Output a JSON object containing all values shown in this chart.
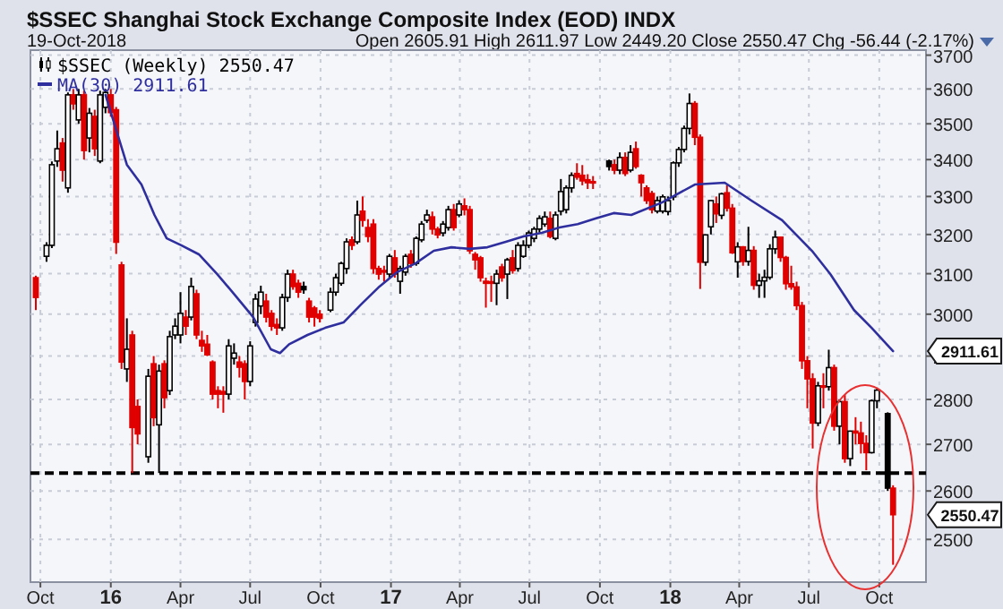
{
  "chart_data": {
    "type": "candlestick",
    "title": "$SSEC Shanghai Stock Exchange Composite Index (EOD) INDX",
    "subtitle": "19-Oct-2018",
    "annotations": [
      "Open 2605.91  High 2611.97  Low 2449.20  Close 2550.47  Chg -56.44 (-2.17%)",
      "2911.61",
      "2550.47"
    ],
    "xlim": [
      "2015-09-18",
      "2018-12-01"
    ],
    "xticks": [
      {
        "value": "2015-10-01",
        "label": "Oct"
      },
      {
        "value": "2016-01-01",
        "label": "16"
      },
      {
        "value": "2016-04-01",
        "label": "Apr"
      },
      {
        "value": "2016-07-01",
        "label": "Jul"
      },
      {
        "value": "2016-10-01",
        "label": "Oct"
      },
      {
        "value": "2017-01-01",
        "label": "17"
      },
      {
        "value": "2017-04-01",
        "label": "Apr"
      },
      {
        "value": "2017-07-01",
        "label": "Jul"
      },
      {
        "value": "2017-10-01",
        "label": "Oct"
      },
      {
        "value": "2018-01-01",
        "label": "18"
      },
      {
        "value": "2018-04-01",
        "label": "Apr"
      },
      {
        "value": "2018-07-01",
        "label": "Jul"
      },
      {
        "value": "2018-10-01",
        "label": "Oct"
      }
    ],
    "ylim": [
      2415,
      3715
    ],
    "yticks": [
      2500,
      2600,
      2700,
      2800,
      2900,
      3000,
      3100,
      3200,
      3300,
      3400,
      3500,
      3600,
      3700
    ],
    "log": "y",
    "grid": true,
    "legend": "top left",
    "ref_lines": [
      {
        "axis": "y",
        "value": 2638,
        "color": "#000000",
        "line_style": "dashed"
      }
    ],
    "series": [
      {
        "type": "candlestick",
        "name": "$SSEC (Weekly) 2550.47",
        "x": [
          "2015-09-25",
          "2015-10-09",
          "2015-10-16",
          "2015-10-23",
          "2015-10-30",
          "2015-11-06",
          "2015-11-13",
          "2015-11-20",
          "2015-11-27",
          "2015-12-04",
          "2015-12-11",
          "2015-12-18",
          "2015-12-25",
          "2016-01-01",
          "2016-01-08",
          "2016-01-15",
          "2016-01-22",
          "2016-01-29",
          "2016-02-05",
          "2016-02-19",
          "2016-02-26",
          "2016-03-04",
          "2016-03-11",
          "2016-03-18",
          "2016-03-25",
          "2016-04-01",
          "2016-04-08",
          "2016-04-15",
          "2016-04-22",
          "2016-04-29",
          "2016-05-06",
          "2016-05-13",
          "2016-05-20",
          "2016-05-27",
          "2016-06-03",
          "2016-06-10",
          "2016-06-17",
          "2016-06-24",
          "2016-07-01",
          "2016-07-08",
          "2016-07-15",
          "2016-07-22",
          "2016-07-29",
          "2016-08-05",
          "2016-08-12",
          "2016-08-19",
          "2016-08-26",
          "2016-09-02",
          "2016-09-09",
          "2016-09-16",
          "2016-09-23",
          "2016-09-30",
          "2016-10-14",
          "2016-10-21",
          "2016-10-28",
          "2016-11-04",
          "2016-11-11",
          "2016-11-18",
          "2016-11-25",
          "2016-12-02",
          "2016-12-09",
          "2016-12-16",
          "2016-12-23",
          "2016-12-30",
          "2017-01-06",
          "2017-01-13",
          "2017-01-20",
          "2017-01-27",
          "2017-02-03",
          "2017-02-10",
          "2017-02-17",
          "2017-02-24",
          "2017-03-03",
          "2017-03-10",
          "2017-03-17",
          "2017-03-24",
          "2017-03-31",
          "2017-04-07",
          "2017-04-14",
          "2017-04-21",
          "2017-04-28",
          "2017-05-05",
          "2017-05-12",
          "2017-05-19",
          "2017-05-26",
          "2017-06-02",
          "2017-06-09",
          "2017-06-16",
          "2017-06-23",
          "2017-06-30",
          "2017-07-07",
          "2017-07-14",
          "2017-07-21",
          "2017-07-28",
          "2017-08-04",
          "2017-08-11",
          "2017-08-18",
          "2017-08-25",
          "2017-09-01",
          "2017-09-08",
          "2017-09-15",
          "2017-09-22",
          "2017-10-13",
          "2017-10-20",
          "2017-10-27",
          "2017-11-03",
          "2017-11-10",
          "2017-11-17",
          "2017-11-24",
          "2017-12-01",
          "2017-12-08",
          "2017-12-15",
          "2017-12-22",
          "2017-12-29",
          "2018-01-05",
          "2018-01-12",
          "2018-01-19",
          "2018-01-26",
          "2018-02-02",
          "2018-02-09",
          "2018-02-16",
          "2018-02-23",
          "2018-03-02",
          "2018-03-09",
          "2018-03-16",
          "2018-03-23",
          "2018-03-30",
          "2018-04-06",
          "2018-04-13",
          "2018-04-20",
          "2018-04-27",
          "2018-05-04",
          "2018-05-11",
          "2018-05-18",
          "2018-05-25",
          "2018-06-01",
          "2018-06-08",
          "2018-06-15",
          "2018-06-22",
          "2018-06-29",
          "2018-07-06",
          "2018-07-13",
          "2018-07-20",
          "2018-07-27",
          "2018-08-03",
          "2018-08-10",
          "2018-08-17",
          "2018-08-24",
          "2018-08-31",
          "2018-09-07",
          "2018-09-14",
          "2018-09-21",
          "2018-09-28",
          "2018-10-12",
          "2018-10-19"
        ],
        "ohlc": [
          [
            3090,
            3095,
            3010,
            3041
          ],
          [
            3144,
            3180,
            3130,
            3172
          ],
          [
            3172,
            3395,
            3165,
            3386
          ],
          [
            3396,
            3481,
            3380,
            3430
          ],
          [
            3446,
            3460,
            3340,
            3371
          ],
          [
            3323,
            3590,
            3310,
            3583
          ],
          [
            3583,
            3600,
            3540,
            3557
          ],
          [
            3511,
            3600,
            3500,
            3583
          ],
          [
            3583,
            3595,
            3400,
            3425
          ],
          [
            3460,
            3545,
            3420,
            3530
          ],
          [
            3521,
            3540,
            3410,
            3430
          ],
          [
            3396,
            3595,
            3390,
            3583
          ],
          [
            3547,
            3600,
            3530,
            3590
          ],
          [
            3583,
            3600,
            3520,
            3532
          ],
          [
            3540,
            3548,
            3150,
            3180
          ],
          [
            3122,
            3130,
            2870,
            2886
          ],
          [
            2870,
            2990,
            2840,
            2916
          ],
          [
            2950,
            2960,
            2638,
            2737
          ],
          [
            2784,
            2800,
            2700,
            2723
          ],
          [
            2673,
            2870,
            2660,
            2853
          ],
          [
            2882,
            2900,
            2740,
            2759
          ],
          [
            2743,
            2880,
            2638,
            2865
          ],
          [
            2882,
            2890,
            2780,
            2804
          ],
          [
            2820,
            2960,
            2810,
            2946
          ],
          [
            2950,
            2990,
            2940,
            2971
          ],
          [
            2950,
            3054,
            2930,
            3002
          ],
          [
            2993,
            3010,
            2950,
            2971
          ],
          [
            2993,
            3090,
            2985,
            3068
          ],
          [
            3050,
            3060,
            2940,
            2950
          ],
          [
            2937,
            2960,
            2910,
            2924
          ],
          [
            2928,
            2950,
            2900,
            2903
          ],
          [
            2886,
            2890,
            2800,
            2812
          ],
          [
            2820,
            2830,
            2780,
            2812
          ],
          [
            2818,
            2830,
            2770,
            2812
          ],
          [
            2812,
            2940,
            2800,
            2924
          ],
          [
            2895,
            2930,
            2880,
            2907
          ],
          [
            2886,
            2900,
            2850,
            2874
          ],
          [
            2882,
            2890,
            2800,
            2841
          ],
          [
            2841,
            2935,
            2830,
            2924
          ],
          [
            2980,
            3050,
            2970,
            3037
          ],
          [
            3020,
            3070,
            3000,
            3054
          ],
          [
            3032,
            3050,
            2980,
            2993
          ],
          [
            3002,
            3010,
            2960,
            2971
          ],
          [
            2975,
            2990,
            2950,
            2967
          ],
          [
            2967,
            3050,
            2960,
            3041
          ],
          [
            3041,
            3110,
            3030,
            3099
          ],
          [
            3099,
            3110,
            3060,
            3068
          ],
          [
            3076,
            3085,
            3040,
            3054
          ],
          [
            3068,
            3080,
            3050,
            3060
          ],
          [
            3032,
            3040,
            2980,
            2993
          ],
          [
            3015,
            3020,
            2970,
            2993
          ],
          [
            3000,
            3010,
            2980,
            2990
          ],
          [
            3010,
            3065,
            3005,
            3054
          ],
          [
            3054,
            3100,
            3045,
            3090
          ],
          [
            3076,
            3130,
            3070,
            3126
          ],
          [
            3113,
            3190,
            3100,
            3181
          ],
          [
            3186,
            3195,
            3160,
            3172
          ],
          [
            3181,
            3289,
            3175,
            3251
          ],
          [
            3261,
            3300,
            3220,
            3237
          ],
          [
            3218,
            3240,
            3180,
            3195
          ],
          [
            3227,
            3240,
            3100,
            3113
          ],
          [
            3113,
            3120,
            3085,
            3099
          ],
          [
            3108,
            3120,
            3080,
            3104
          ],
          [
            3099,
            3150,
            3090,
            3144
          ],
          [
            3140,
            3160,
            3090,
            3099
          ],
          [
            3081,
            3120,
            3050,
            3113
          ],
          [
            3104,
            3150,
            3095,
            3144
          ],
          [
            3149,
            3160,
            3115,
            3126
          ],
          [
            3126,
            3195,
            3120,
            3190
          ],
          [
            3186,
            3235,
            3180,
            3227
          ],
          [
            3237,
            3265,
            3230,
            3251
          ],
          [
            3246,
            3260,
            3200,
            3214
          ],
          [
            3214,
            3220,
            3190,
            3199
          ],
          [
            3204,
            3235,
            3195,
            3227
          ],
          [
            3218,
            3275,
            3210,
            3265
          ],
          [
            3265,
            3280,
            3210,
            3218
          ],
          [
            3251,
            3290,
            3245,
            3280
          ],
          [
            3275,
            3295,
            3250,
            3265
          ],
          [
            3265,
            3275,
            3150,
            3158
          ],
          [
            3149,
            3155,
            3110,
            3135
          ],
          [
            3140,
            3145,
            3080,
            3090
          ],
          [
            3081,
            3090,
            3016,
            3076
          ],
          [
            3080,
            3095,
            3030,
            3076
          ],
          [
            3076,
            3110,
            3022,
            3099
          ],
          [
            3117,
            3125,
            3080,
            3090
          ],
          [
            3099,
            3140,
            3037,
            3135
          ],
          [
            3140,
            3160,
            3100,
            3108
          ],
          [
            3113,
            3180,
            3105,
            3172
          ],
          [
            3144,
            3185,
            3140,
            3172
          ],
          [
            3172,
            3210,
            3165,
            3204
          ],
          [
            3190,
            3220,
            3180,
            3214
          ],
          [
            3214,
            3250,
            3205,
            3242
          ],
          [
            3227,
            3260,
            3220,
            3246
          ],
          [
            3242,
            3260,
            3190,
            3195
          ],
          [
            3190,
            3260,
            3185,
            3251
          ],
          [
            3261,
            3347,
            3250,
            3313
          ],
          [
            3265,
            3330,
            3255,
            3323
          ],
          [
            3323,
            3365,
            3310,
            3357
          ],
          [
            3362,
            3390,
            3345,
            3352
          ],
          [
            3357,
            3385,
            3330,
            3342
          ],
          [
            3345,
            3360,
            3320,
            3337
          ],
          [
            3340,
            3355,
            3320,
            3337
          ],
          [
            3396,
            3400,
            3370,
            3381
          ],
          [
            3386,
            3400,
            3360,
            3371
          ],
          [
            3371,
            3420,
            3360,
            3406
          ],
          [
            3406,
            3420,
            3355,
            3362
          ],
          [
            3371,
            3440,
            3365,
            3420
          ],
          [
            3430,
            3450,
            3375,
            3381
          ],
          [
            3357,
            3360,
            3300,
            3337
          ],
          [
            3323,
            3330,
            3280,
            3289
          ],
          [
            3308,
            3315,
            3255,
            3265
          ],
          [
            3261,
            3300,
            3255,
            3289
          ],
          [
            3261,
            3305,
            3255,
            3299
          ],
          [
            3260,
            3300,
            3250,
            3289
          ],
          [
            3299,
            3395,
            3290,
            3391
          ],
          [
            3391,
            3435,
            3380,
            3428
          ],
          [
            3428,
            3495,
            3420,
            3487
          ],
          [
            3487,
            3587,
            3470,
            3558
          ],
          [
            3558,
            3565,
            3440,
            3462
          ],
          [
            3462,
            3470,
            3062,
            3129
          ],
          [
            3129,
            3200,
            3120,
            3199
          ],
          [
            3220,
            3290,
            3200,
            3289
          ],
          [
            3280,
            3300,
            3230,
            3254
          ],
          [
            3250,
            3310,
            3240,
            3307
          ],
          [
            3310,
            3330,
            3260,
            3269
          ],
          [
            3269,
            3280,
            3150,
            3153
          ],
          [
            3130,
            3180,
            3090,
            3168
          ],
          [
            3168,
            3170,
            3120,
            3131
          ],
          [
            3131,
            3220,
            3120,
            3159
          ],
          [
            3159,
            3170,
            3060,
            3071
          ],
          [
            3071,
            3100,
            3040,
            3082
          ],
          [
            3082,
            3110,
            3040,
            3091
          ],
          [
            3091,
            3175,
            3085,
            3163
          ],
          [
            3163,
            3210,
            3150,
            3193
          ],
          [
            3193,
            3195,
            3130,
            3141
          ],
          [
            3141,
            3145,
            3060,
            3075
          ],
          [
            3075,
            3120,
            3060,
            3067
          ],
          [
            3067,
            3080,
            3010,
            3021
          ],
          [
            3021,
            3030,
            2870,
            2889
          ],
          [
            2889,
            2900,
            2780,
            2847
          ],
          [
            2847,
            2860,
            2691,
            2747
          ],
          [
            2747,
            2840,
            2740,
            2831
          ],
          [
            2831,
            2860,
            2780,
            2829
          ],
          [
            2829,
            2915,
            2820,
            2873
          ],
          [
            2873,
            2880,
            2730,
            2740
          ],
          [
            2740,
            2800,
            2700,
            2795
          ],
          [
            2795,
            2810,
            2660,
            2669
          ],
          [
            2669,
            2730,
            2653,
            2729
          ],
          [
            2729,
            2760,
            2700,
            2725
          ],
          [
            2725,
            2750,
            2680,
            2702
          ],
          [
            2702,
            2720,
            2644,
            2682
          ],
          [
            2682,
            2800,
            2680,
            2797
          ],
          [
            2797,
            2827,
            2780,
            2821
          ],
          [
            2768,
            2771,
            2600,
            2606
          ],
          [
            2605.91,
            2611.97,
            2449.2,
            2550.47
          ]
        ],
        "colors": [
          "#e00000",
          "#000000",
          "#000000",
          "#000000",
          "#e00000",
          "#000000",
          "#e00000",
          "#000000",
          "#e00000",
          "#000000",
          "#e00000",
          "#000000",
          "#000000",
          "#e00000",
          "#e00000",
          "#e00000",
          "#000000",
          "#e00000",
          "#e00000",
          "#000000",
          "#e00000",
          "#000000",
          "#e00000",
          "#000000",
          "#000000",
          "#000000",
          "#e00000",
          "#000000",
          "#e00000",
          "#e00000",
          "#e00000",
          "#e00000",
          "#e00000",
          "#e00000",
          "#000000",
          "#000000",
          "#e00000",
          "#e00000",
          "#000000",
          "#000000",
          "#000000",
          "#e00000",
          "#e00000",
          "#e00000",
          "#000000",
          "#000000",
          "#e00000",
          "#e00000",
          "#000000",
          "#e00000",
          "#e00000",
          "#e00000",
          "#000000",
          "#000000",
          "#000000",
          "#000000",
          "#e00000",
          "#000000",
          "#e00000",
          "#e00000",
          "#e00000",
          "#e00000",
          "#e00000",
          "#000000",
          "#e00000",
          "#000000",
          "#000000",
          "#e00000",
          "#000000",
          "#000000",
          "#000000",
          "#e00000",
          "#e00000",
          "#000000",
          "#000000",
          "#e00000",
          "#000000",
          "#e00000",
          "#e00000",
          "#e00000",
          "#e00000",
          "#e00000",
          "#e00000",
          "#000000",
          "#e00000",
          "#000000",
          "#e00000",
          "#000000",
          "#000000",
          "#000000",
          "#000000",
          "#000000",
          "#000000",
          "#e00000",
          "#000000",
          "#000000",
          "#000000",
          "#000000",
          "#e00000",
          "#e00000",
          "#e00000",
          "#e00000",
          "#000000",
          "#e00000",
          "#000000",
          "#e00000",
          "#000000",
          "#e00000",
          "#e00000",
          "#e00000",
          "#e00000",
          "#000000",
          "#000000",
          "#000000",
          "#000000",
          "#000000",
          "#000000",
          "#000000",
          "#e00000",
          "#e00000",
          "#000000",
          "#000000",
          "#e00000",
          "#000000",
          "#e00000",
          "#e00000",
          "#000000",
          "#e00000",
          "#000000",
          "#e00000",
          "#000000",
          "#000000",
          "#000000",
          "#000000",
          "#e00000",
          "#e00000",
          "#e00000",
          "#e00000",
          "#e00000",
          "#e00000",
          "#e00000",
          "#000000",
          "#e00000",
          "#000000",
          "#e00000",
          "#000000",
          "#e00000",
          "#000000",
          "#e00000",
          "#e00000",
          "#e00000",
          "#000000",
          "#000000",
          "#000000",
          "#e00000"
        ]
      },
      {
        "type": "line",
        "name": "MA(30) 2911.61",
        "color": "#2e2e9e",
        "x": [
          "2015-12-25",
          "2016-01-22",
          "2016-02-10",
          "2016-02-27",
          "2016-03-14",
          "2016-04-02",
          "2016-04-25",
          "2016-05-19",
          "2016-06-12",
          "2016-07-05",
          "2016-07-28",
          "2016-08-09",
          "2016-08-21",
          "2016-09-14",
          "2016-10-07",
          "2016-10-31",
          "2016-11-23",
          "2016-12-17",
          "2017-01-09",
          "2017-02-02",
          "2017-02-26",
          "2017-03-21",
          "2017-04-14",
          "2017-05-07",
          "2017-05-31",
          "2017-06-23",
          "2017-07-17",
          "2017-08-09",
          "2017-09-02",
          "2017-09-26",
          "2017-10-19",
          "2017-11-11",
          "2017-12-21",
          "2018-02-02",
          "2018-03-13",
          "2018-04-17",
          "2018-05-27",
          "2018-07-05",
          "2018-07-29",
          "2018-08-29",
          "2018-09-21",
          "2018-10-19"
        ],
        "values": [
          3583,
          3386,
          3332,
          3251,
          3190,
          3172,
          3149,
          3099,
          3045,
          2993,
          2916,
          2907,
          2928,
          2950,
          2967,
          2980,
          3024,
          3068,
          3104,
          3126,
          3158,
          3167,
          3163,
          3167,
          3181,
          3195,
          3204,
          3218,
          3227,
          3242,
          3256,
          3251,
          3284,
          3332,
          3337,
          3289,
          3237,
          3158,
          3099,
          3010,
          2967,
          2911.61
        ]
      }
    ]
  }
}
